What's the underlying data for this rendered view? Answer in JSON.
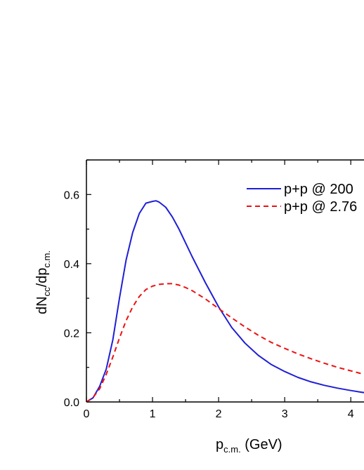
{
  "chart_data": {
    "type": "line",
    "title": "",
    "xlabel": {
      "main": "p",
      "sub": "c.m.",
      "unit": " (GeV)"
    },
    "ylabel": {
      "p1": "dN",
      "sub1": "cc",
      "p2": "/dp",
      "sub2": "c.m."
    },
    "xlim": [
      0,
      4.2
    ],
    "ylim": [
      0,
      0.7
    ],
    "x_ticks": [
      "0",
      "1",
      "2",
      "3",
      "4"
    ],
    "y_ticks": [
      "0.0",
      "0.2",
      "0.4",
      "0.6"
    ],
    "grid": false,
    "legend_position": "top-right",
    "series": [
      {
        "name": "p+p @ 200",
        "color": "#1f1fd6",
        "style": "solid",
        "x": [
          0.0,
          0.1,
          0.2,
          0.3,
          0.4,
          0.5,
          0.6,
          0.7,
          0.8,
          0.9,
          1.0,
          1.05,
          1.1,
          1.2,
          1.3,
          1.4,
          1.6,
          1.8,
          2.0,
          2.2,
          2.4,
          2.6,
          2.8,
          3.0,
          3.2,
          3.4,
          3.6,
          3.8,
          4.0,
          4.2
        ],
        "y": [
          0.0,
          0.012,
          0.045,
          0.095,
          0.18,
          0.3,
          0.41,
          0.49,
          0.545,
          0.575,
          0.58,
          0.582,
          0.578,
          0.563,
          0.535,
          0.5,
          0.42,
          0.345,
          0.275,
          0.215,
          0.17,
          0.135,
          0.108,
          0.088,
          0.071,
          0.058,
          0.048,
          0.04,
          0.033,
          0.027
        ]
      },
      {
        "name": "p+p @ 2.76",
        "color": "#ee1111",
        "style": "dashed",
        "x": [
          0.0,
          0.1,
          0.2,
          0.3,
          0.4,
          0.5,
          0.6,
          0.7,
          0.8,
          0.9,
          1.0,
          1.1,
          1.2,
          1.3,
          1.4,
          1.5,
          1.6,
          1.8,
          2.0,
          2.2,
          2.4,
          2.6,
          2.8,
          3.0,
          3.2,
          3.4,
          3.6,
          3.8,
          4.0,
          4.2
        ],
        "y": [
          0.0,
          0.013,
          0.038,
          0.08,
          0.13,
          0.185,
          0.235,
          0.275,
          0.305,
          0.325,
          0.335,
          0.34,
          0.342,
          0.342,
          0.338,
          0.331,
          0.322,
          0.298,
          0.27,
          0.243,
          0.217,
          0.193,
          0.172,
          0.155,
          0.139,
          0.125,
          0.112,
          0.1,
          0.09,
          0.08
        ]
      }
    ]
  }
}
